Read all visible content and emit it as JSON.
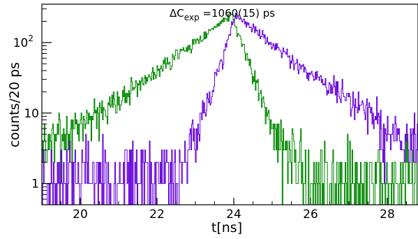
{
  "chart_data": {
    "type": "line",
    "title": "",
    "xlabel": "t[ns]",
    "ylabel": "counts/20 ps",
    "xlim": [
      19,
      28.8
    ],
    "ylim": [
      0.5,
      350
    ],
    "y_scale": "log",
    "grid": false,
    "legend": "none",
    "annotation": {
      "base": "ΔC",
      "sub": "exp",
      "rest": " =1060(15) ps"
    },
    "x_ticks": [
      {
        "value": 20,
        "label": "20"
      },
      {
        "value": 22,
        "label": "22"
      },
      {
        "value": 24,
        "label": "24"
      },
      {
        "value": 26,
        "label": "26"
      },
      {
        "value": 28,
        "label": "28"
      }
    ],
    "y_ticks": [
      {
        "value": 1,
        "base": "1",
        "exp": ""
      },
      {
        "value": 10,
        "base": "10",
        "exp": ""
      },
      {
        "value": 100,
        "base": "10",
        "exp": "2"
      }
    ],
    "series": [
      {
        "color": "#008800",
        "shape": "asym_exp",
        "peak_x": 23.95,
        "peak_y": 250,
        "left_decay_ns": 1.05,
        "right_decay_ns": 0.28,
        "background": 1.2,
        "noise_seed": 7
      },
      {
        "color": "#6600dd",
        "shape": "asym_exp",
        "peak_x": 24.05,
        "peak_y": 240,
        "left_decay_ns": 0.25,
        "right_decay_ns": 1.05,
        "background": 1.3,
        "noise_seed": 23
      }
    ]
  }
}
